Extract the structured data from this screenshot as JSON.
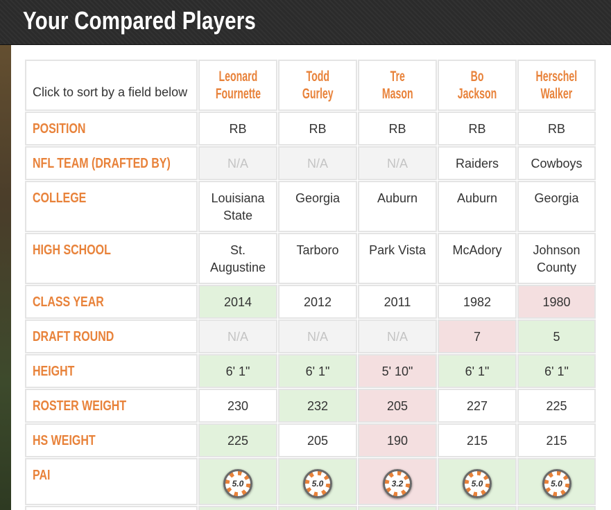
{
  "page": {
    "title": "Your Compared Players"
  },
  "table": {
    "sort_hint": "Click to sort by a field below",
    "players": [
      {
        "name": "Leonard Fournette",
        "first": "Leonard",
        "last": "Fournette"
      },
      {
        "name": "Todd Gurley",
        "first": "Todd",
        "last": "Gurley"
      },
      {
        "name": "Tre Mason",
        "first": "Tre",
        "last": "Mason"
      },
      {
        "name": "Bo Jackson",
        "first": "Bo",
        "last": "Jackson"
      },
      {
        "name": "Herschel Walker",
        "first": "Herschel",
        "last": "Walker"
      }
    ],
    "rows": [
      {
        "label": "POSITION",
        "cells": [
          {
            "line1": "RB",
            "line2": "",
            "state": "normal"
          },
          {
            "line1": "RB",
            "line2": "",
            "state": "normal"
          },
          {
            "line1": "RB",
            "line2": "",
            "state": "normal"
          },
          {
            "line1": "RB",
            "line2": "",
            "state": "normal"
          },
          {
            "line1": "RB",
            "line2": "",
            "state": "normal"
          }
        ]
      },
      {
        "label": "NFL TEAM (DRAFTED BY)",
        "cells": [
          {
            "line1": "N/A",
            "line2": "",
            "state": "na"
          },
          {
            "line1": "N/A",
            "line2": "",
            "state": "na"
          },
          {
            "line1": "N/A",
            "line2": "",
            "state": "na"
          },
          {
            "line1": "Raiders",
            "line2": "",
            "state": "normal"
          },
          {
            "line1": "Cowboys",
            "line2": "",
            "state": "normal"
          }
        ]
      },
      {
        "label": "COLLEGE",
        "cells": [
          {
            "line1": "Louisiana",
            "line2": "State",
            "state": "normal"
          },
          {
            "line1": "Georgia",
            "line2": "",
            "state": "normal"
          },
          {
            "line1": "Auburn",
            "line2": "",
            "state": "normal"
          },
          {
            "line1": "Auburn",
            "line2": "",
            "state": "normal"
          },
          {
            "line1": "Georgia",
            "line2": "",
            "state": "normal"
          }
        ]
      },
      {
        "label": "HIGH SCHOOL",
        "cells": [
          {
            "line1": "St.",
            "line2": "Augustine",
            "state": "normal"
          },
          {
            "line1": "Tarboro",
            "line2": "",
            "state": "normal"
          },
          {
            "line1": "Park Vista",
            "line2": "",
            "state": "normal"
          },
          {
            "line1": "McAdory",
            "line2": "",
            "state": "normal"
          },
          {
            "line1": "Johnson",
            "line2": "County",
            "state": "normal"
          }
        ]
      },
      {
        "label": "CLASS YEAR",
        "cells": [
          {
            "line1": "2014",
            "line2": "",
            "state": "good"
          },
          {
            "line1": "2012",
            "line2": "",
            "state": "normal"
          },
          {
            "line1": "2011",
            "line2": "",
            "state": "normal"
          },
          {
            "line1": "1982",
            "line2": "",
            "state": "normal"
          },
          {
            "line1": "1980",
            "line2": "",
            "state": "bad"
          }
        ]
      },
      {
        "label": "DRAFT ROUND",
        "cells": [
          {
            "line1": "N/A",
            "line2": "",
            "state": "na"
          },
          {
            "line1": "N/A",
            "line2": "",
            "state": "na"
          },
          {
            "line1": "N/A",
            "line2": "",
            "state": "na"
          },
          {
            "line1": "7",
            "line2": "",
            "state": "bad"
          },
          {
            "line1": "5",
            "line2": "",
            "state": "good"
          }
        ]
      },
      {
        "label": "HEIGHT",
        "cells": [
          {
            "line1": "6' 1\"",
            "line2": "",
            "state": "good"
          },
          {
            "line1": "6' 1\"",
            "line2": "",
            "state": "good"
          },
          {
            "line1": "5' 10\"",
            "line2": "",
            "state": "bad"
          },
          {
            "line1": "6' 1\"",
            "line2": "",
            "state": "good"
          },
          {
            "line1": "6' 1\"",
            "line2": "",
            "state": "good"
          }
        ]
      },
      {
        "label": "ROSTER WEIGHT",
        "cells": [
          {
            "line1": "230",
            "line2": "",
            "state": "normal"
          },
          {
            "line1": "232",
            "line2": "",
            "state": "good"
          },
          {
            "line1": "205",
            "line2": "",
            "state": "bad"
          },
          {
            "line1": "227",
            "line2": "",
            "state": "normal"
          },
          {
            "line1": "225",
            "line2": "",
            "state": "normal"
          }
        ]
      },
      {
        "label": "HS WEIGHT",
        "cells": [
          {
            "line1": "225",
            "line2": "",
            "state": "good"
          },
          {
            "line1": "205",
            "line2": "",
            "state": "normal"
          },
          {
            "line1": "190",
            "line2": "",
            "state": "bad"
          },
          {
            "line1": "215",
            "line2": "",
            "state": "normal"
          },
          {
            "line1": "215",
            "line2": "",
            "state": "normal"
          }
        ]
      }
    ],
    "pai": {
      "label": "PAI",
      "cells": [
        {
          "value": "5.0",
          "state": "good"
        },
        {
          "value": "5.0",
          "state": "good"
        },
        {
          "value": "3.2",
          "state": "bad"
        },
        {
          "value": "5.0",
          "state": "good"
        },
        {
          "value": "5.0",
          "state": "good"
        }
      ]
    }
  }
}
